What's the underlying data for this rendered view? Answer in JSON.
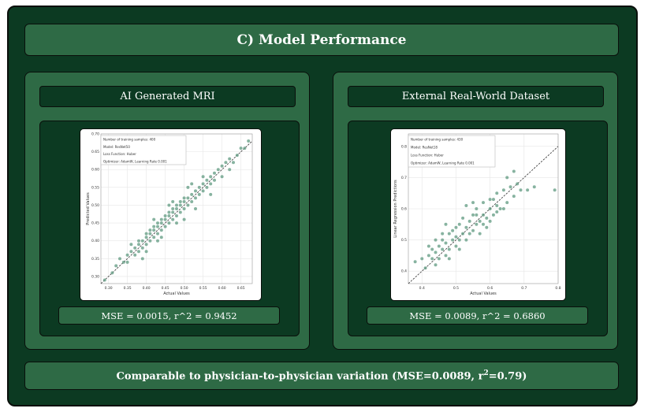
{
  "header": {
    "title": "C) Model Performance"
  },
  "footer": {
    "prefix": "Comparable to physician-to-physician variation (MSE=0.0089, r",
    "sup": "2",
    "suffix": "=0.79)"
  },
  "colors": {
    "outer_bg": "#0c3a22",
    "panel_bg": "#2e6a45",
    "point": "#5f9a80",
    "diagonal": "#333333"
  },
  "panels": [
    {
      "title": "AI Generated MRI",
      "metric": "MSE = 0.0015, r^2 = 0.9452",
      "legend": [
        "Number of training samples: 400",
        "Model: ResNet50",
        "Loss Function: Huber",
        "Optimizer: AdamW, Learning Rate 0.001"
      ],
      "chart_data": {
        "type": "scatter",
        "xlabel": "Actual Values",
        "ylabel": "Predicted Values",
        "xlim": [
          0.28,
          0.68
        ],
        "ylim": [
          0.28,
          0.7
        ],
        "xticks": [
          "0.30",
          "0.35",
          "0.40",
          "0.45",
          "0.50",
          "0.55",
          "0.60",
          "0.65"
        ],
        "yticks": [
          "0.30",
          "0.35",
          "0.40",
          "0.45",
          "0.50",
          "0.55",
          "0.60",
          "0.65",
          "0.70"
        ],
        "diagonal": [
          [
            0.28,
            0.28
          ],
          [
            0.68,
            0.68
          ]
        ],
        "points": [
          [
            0.29,
            0.29
          ],
          [
            0.31,
            0.31
          ],
          [
            0.32,
            0.33
          ],
          [
            0.33,
            0.35
          ],
          [
            0.34,
            0.34
          ],
          [
            0.35,
            0.34
          ],
          [
            0.35,
            0.36
          ],
          [
            0.36,
            0.37
          ],
          [
            0.37,
            0.36
          ],
          [
            0.37,
            0.38
          ],
          [
            0.38,
            0.37
          ],
          [
            0.38,
            0.39
          ],
          [
            0.38,
            0.4
          ],
          [
            0.39,
            0.38
          ],
          [
            0.39,
            0.4
          ],
          [
            0.4,
            0.39
          ],
          [
            0.4,
            0.41
          ],
          [
            0.4,
            0.42
          ],
          [
            0.41,
            0.4
          ],
          [
            0.41,
            0.42
          ],
          [
            0.41,
            0.43
          ],
          [
            0.42,
            0.41
          ],
          [
            0.42,
            0.43
          ],
          [
            0.42,
            0.44
          ],
          [
            0.43,
            0.42
          ],
          [
            0.43,
            0.44
          ],
          [
            0.43,
            0.45
          ],
          [
            0.44,
            0.43
          ],
          [
            0.44,
            0.45
          ],
          [
            0.44,
            0.46
          ],
          [
            0.45,
            0.44
          ],
          [
            0.45,
            0.46
          ],
          [
            0.45,
            0.47
          ],
          [
            0.46,
            0.45
          ],
          [
            0.46,
            0.47
          ],
          [
            0.46,
            0.48
          ],
          [
            0.47,
            0.46
          ],
          [
            0.47,
            0.48
          ],
          [
            0.47,
            0.49
          ],
          [
            0.48,
            0.47
          ],
          [
            0.48,
            0.49
          ],
          [
            0.48,
            0.5
          ],
          [
            0.49,
            0.48
          ],
          [
            0.49,
            0.5
          ],
          [
            0.49,
            0.51
          ],
          [
            0.5,
            0.49
          ],
          [
            0.5,
            0.51
          ],
          [
            0.5,
            0.52
          ],
          [
            0.51,
            0.5
          ],
          [
            0.51,
            0.52
          ],
          [
            0.52,
            0.51
          ],
          [
            0.52,
            0.53
          ],
          [
            0.53,
            0.52
          ],
          [
            0.53,
            0.54
          ],
          [
            0.54,
            0.53
          ],
          [
            0.54,
            0.55
          ],
          [
            0.55,
            0.54
          ],
          [
            0.55,
            0.56
          ],
          [
            0.56,
            0.55
          ],
          [
            0.56,
            0.57
          ],
          [
            0.57,
            0.56
          ],
          [
            0.57,
            0.58
          ],
          [
            0.58,
            0.57
          ],
          [
            0.58,
            0.59
          ],
          [
            0.59,
            0.6
          ],
          [
            0.6,
            0.61
          ],
          [
            0.61,
            0.62
          ],
          [
            0.62,
            0.63
          ],
          [
            0.63,
            0.62
          ],
          [
            0.64,
            0.64
          ],
          [
            0.65,
            0.66
          ],
          [
            0.66,
            0.66
          ],
          [
            0.67,
            0.68
          ],
          [
            0.44,
            0.41
          ],
          [
            0.46,
            0.5
          ],
          [
            0.48,
            0.45
          ],
          [
            0.5,
            0.46
          ],
          [
            0.52,
            0.56
          ],
          [
            0.42,
            0.46
          ],
          [
            0.4,
            0.37
          ],
          [
            0.55,
            0.58
          ],
          [
            0.57,
            0.53
          ],
          [
            0.6,
            0.58
          ],
          [
            0.62,
            0.6
          ],
          [
            0.36,
            0.39
          ],
          [
            0.39,
            0.35
          ],
          [
            0.51,
            0.55
          ],
          [
            0.53,
            0.49
          ],
          [
            0.47,
            0.51
          ],
          [
            0.43,
            0.4
          ]
        ]
      }
    },
    {
      "title": "External Real-World Dataset",
      "metric": "MSE = 0.0089, r^2 = 0.6860",
      "legend": [
        "Number of training samples: 430",
        "Model: ResNet18",
        "Loss Function: Huber",
        "Optimizer: AdamW, Learning Rate 0.001"
      ],
      "chart_data": {
        "type": "scatter",
        "xlabel": "Actual Values",
        "ylabel": "Linear Regression Predictions",
        "xlim": [
          0.36,
          0.8
        ],
        "ylim": [
          0.36,
          0.84
        ],
        "xticks": [
          "0.4",
          "0.5",
          "0.6",
          "0.7",
          "0.8"
        ],
        "yticks": [
          "0.4",
          "0.5",
          "0.6",
          "0.7",
          "0.8"
        ],
        "diagonal": [
          [
            0.36,
            0.36
          ],
          [
            0.8,
            0.8
          ]
        ],
        "points": [
          [
            0.38,
            0.43
          ],
          [
            0.4,
            0.44
          ],
          [
            0.41,
            0.41
          ],
          [
            0.42,
            0.45
          ],
          [
            0.43,
            0.44
          ],
          [
            0.43,
            0.47
          ],
          [
            0.44,
            0.42
          ],
          [
            0.44,
            0.46
          ],
          [
            0.45,
            0.48
          ],
          [
            0.45,
            0.44
          ],
          [
            0.46,
            0.47
          ],
          [
            0.46,
            0.5
          ],
          [
            0.47,
            0.45
          ],
          [
            0.47,
            0.49
          ],
          [
            0.48,
            0.52
          ],
          [
            0.48,
            0.47
          ],
          [
            0.49,
            0.5
          ],
          [
            0.49,
            0.53
          ],
          [
            0.5,
            0.48
          ],
          [
            0.5,
            0.51
          ],
          [
            0.5,
            0.54
          ],
          [
            0.51,
            0.5
          ],
          [
            0.51,
            0.55
          ],
          [
            0.52,
            0.52
          ],
          [
            0.52,
            0.57
          ],
          [
            0.53,
            0.5
          ],
          [
            0.53,
            0.54
          ],
          [
            0.54,
            0.56
          ],
          [
            0.54,
            0.52
          ],
          [
            0.55,
            0.58
          ],
          [
            0.55,
            0.53
          ],
          [
            0.56,
            0.55
          ],
          [
            0.56,
            0.6
          ],
          [
            0.57,
            0.56
          ],
          [
            0.57,
            0.52
          ],
          [
            0.58,
            0.58
          ],
          [
            0.58,
            0.62
          ],
          [
            0.59,
            0.57
          ],
          [
            0.59,
            0.54
          ],
          [
            0.6,
            0.6
          ],
          [
            0.6,
            0.56
          ],
          [
            0.61,
            0.63
          ],
          [
            0.61,
            0.58
          ],
          [
            0.62,
            0.61
          ],
          [
            0.62,
            0.65
          ],
          [
            0.63,
            0.6
          ],
          [
            0.64,
            0.66
          ],
          [
            0.65,
            0.62
          ],
          [
            0.65,
            0.7
          ],
          [
            0.66,
            0.67
          ],
          [
            0.67,
            0.64
          ],
          [
            0.68,
            0.68
          ],
          [
            0.69,
            0.66
          ],
          [
            0.71,
            0.66
          ],
          [
            0.73,
            0.67
          ],
          [
            0.79,
            0.66
          ],
          [
            0.47,
            0.55
          ],
          [
            0.53,
            0.61
          ],
          [
            0.44,
            0.5
          ],
          [
            0.56,
            0.58
          ],
          [
            0.6,
            0.63
          ],
          [
            0.51,
            0.47
          ],
          [
            0.42,
            0.48
          ],
          [
            0.58,
            0.55
          ],
          [
            0.62,
            0.59
          ],
          [
            0.46,
            0.52
          ],
          [
            0.64,
            0.6
          ],
          [
            0.48,
            0.44
          ],
          [
            0.55,
            0.62
          ],
          [
            0.67,
            0.72
          ]
        ]
      }
    }
  ]
}
